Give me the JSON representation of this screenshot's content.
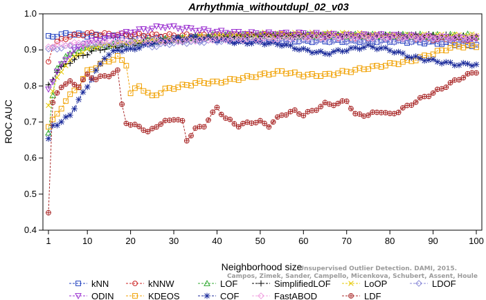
{
  "chart_data": {
    "type": "line",
    "title": "Arrhythmia_withoutdupl_02_v03",
    "xlabel": "Neighborhood size",
    "ylabel": "ROC AUC",
    "xlim": [
      1,
      100
    ],
    "ylim": [
      0.4,
      1.0
    ],
    "x_ticks": [
      1,
      10,
      20,
      30,
      40,
      50,
      60,
      70,
      80,
      90,
      100
    ],
    "y_ticks": [
      0.4,
      0.5,
      0.6,
      0.7,
      0.8,
      0.9,
      1.0
    ],
    "grid": false,
    "legend_position": "bottom",
    "watermark": [
      "Unsupervised Outlier Detection. DAMI, 2015.",
      "Campos, Zimek, Sander, Campello, Micenkova, Schubert, Assent, Houle"
    ],
    "series": [
      {
        "name": "kNN",
        "color": "#1f3fbf",
        "marker": "square",
        "anchors": [
          [
            1,
            0.935
          ],
          [
            3,
            0.94
          ],
          [
            6,
            0.945
          ],
          [
            10,
            0.94
          ],
          [
            20,
            0.935
          ],
          [
            30,
            0.93
          ],
          [
            40,
            0.93
          ],
          [
            50,
            0.93
          ],
          [
            60,
            0.925
          ],
          [
            70,
            0.925
          ],
          [
            80,
            0.925
          ],
          [
            90,
            0.92
          ],
          [
            100,
            0.913
          ]
        ]
      },
      {
        "name": "kNNW",
        "color": "#cc2222",
        "marker": "circle",
        "anchors": [
          [
            1,
            0.87
          ],
          [
            2,
            0.91
          ],
          [
            4,
            0.93
          ],
          [
            7,
            0.94
          ],
          [
            10,
            0.945
          ],
          [
            20,
            0.942
          ],
          [
            30,
            0.94
          ],
          [
            40,
            0.94
          ],
          [
            50,
            0.94
          ],
          [
            60,
            0.94
          ],
          [
            70,
            0.935
          ],
          [
            80,
            0.935
          ],
          [
            90,
            0.93
          ],
          [
            100,
            0.93
          ]
        ]
      },
      {
        "name": "LOF",
        "color": "#2fa82f",
        "marker": "triangle-up",
        "anchors": [
          [
            1,
            0.67
          ],
          [
            2,
            0.77
          ],
          [
            3,
            0.85
          ],
          [
            5,
            0.88
          ],
          [
            8,
            0.9
          ],
          [
            12,
            0.91
          ],
          [
            20,
            0.92
          ],
          [
            30,
            0.93
          ],
          [
            40,
            0.94
          ],
          [
            50,
            0.94
          ],
          [
            60,
            0.94
          ],
          [
            70,
            0.94
          ],
          [
            80,
            0.94
          ],
          [
            90,
            0.94
          ],
          [
            100,
            0.94
          ]
        ]
      },
      {
        "name": "SimplifiedLOF",
        "color": "#000000",
        "marker": "plus",
        "anchors": [
          [
            1,
            0.8
          ],
          [
            2,
            0.82
          ],
          [
            3,
            0.84
          ],
          [
            5,
            0.86
          ],
          [
            8,
            0.88
          ],
          [
            12,
            0.9
          ],
          [
            20,
            0.915
          ],
          [
            30,
            0.925
          ],
          [
            40,
            0.935
          ],
          [
            50,
            0.94
          ],
          [
            60,
            0.94
          ],
          [
            70,
            0.94
          ],
          [
            80,
            0.94
          ],
          [
            90,
            0.94
          ],
          [
            100,
            0.935
          ]
        ]
      },
      {
        "name": "LoOP",
        "color": "#e6c800",
        "marker": "x",
        "anchors": [
          [
            1,
            0.75
          ],
          [
            3,
            0.82
          ],
          [
            5,
            0.86
          ],
          [
            8,
            0.89
          ],
          [
            12,
            0.91
          ],
          [
            20,
            0.92
          ],
          [
            30,
            0.93
          ],
          [
            40,
            0.94
          ],
          [
            50,
            0.945
          ],
          [
            60,
            0.945
          ],
          [
            70,
            0.945
          ],
          [
            80,
            0.94
          ],
          [
            90,
            0.94
          ],
          [
            100,
            0.94
          ]
        ]
      },
      {
        "name": "LDOF",
        "color": "#8a8ad8",
        "marker": "diamond",
        "anchors": [
          [
            1,
            0.9
          ],
          [
            3,
            0.905
          ],
          [
            6,
            0.91
          ],
          [
            10,
            0.915
          ],
          [
            20,
            0.915
          ],
          [
            25,
            0.91
          ],
          [
            30,
            0.92
          ],
          [
            40,
            0.925
          ],
          [
            50,
            0.925
          ],
          [
            60,
            0.925
          ],
          [
            70,
            0.925
          ],
          [
            80,
            0.925
          ],
          [
            90,
            0.925
          ],
          [
            100,
            0.92
          ]
        ]
      },
      {
        "name": "ODIN",
        "color": "#9a2fd0",
        "marker": "triangle-down",
        "anchors": [
          [
            1,
            0.79
          ],
          [
            3,
            0.84
          ],
          [
            6,
            0.89
          ],
          [
            10,
            0.92
          ],
          [
            15,
            0.935
          ],
          [
            20,
            0.95
          ],
          [
            25,
            0.96
          ],
          [
            28,
            0.965
          ],
          [
            32,
            0.96
          ],
          [
            36,
            0.955
          ],
          [
            40,
            0.95
          ],
          [
            50,
            0.945
          ],
          [
            60,
            0.945
          ],
          [
            70,
            0.94
          ],
          [
            80,
            0.94
          ],
          [
            90,
            0.935
          ],
          [
            100,
            0.93
          ]
        ]
      },
      {
        "name": "KDEOS",
        "color": "#f0a000",
        "marker": "square",
        "anchors": [
          [
            1,
            0.69
          ],
          [
            3,
            0.72
          ],
          [
            5,
            0.76
          ],
          [
            8,
            0.8
          ],
          [
            10,
            0.84
          ],
          [
            13,
            0.86
          ],
          [
            17,
            0.88
          ],
          [
            19,
            0.86
          ],
          [
            20,
            0.78
          ],
          [
            22,
            0.8
          ],
          [
            25,
            0.77
          ],
          [
            28,
            0.79
          ],
          [
            32,
            0.8
          ],
          [
            36,
            0.81
          ],
          [
            40,
            0.81
          ],
          [
            45,
            0.82
          ],
          [
            50,
            0.83
          ],
          [
            55,
            0.84
          ],
          [
            60,
            0.83
          ],
          [
            65,
            0.83
          ],
          [
            70,
            0.84
          ],
          [
            75,
            0.85
          ],
          [
            80,
            0.86
          ],
          [
            85,
            0.87
          ],
          [
            90,
            0.89
          ],
          [
            95,
            0.91
          ],
          [
            100,
            0.91
          ]
        ]
      },
      {
        "name": "COF",
        "color": "#1a2a9a",
        "marker": "asterisk",
        "anchors": [
          [
            1,
            0.65
          ],
          [
            2,
            0.69
          ],
          [
            4,
            0.7
          ],
          [
            6,
            0.72
          ],
          [
            8,
            0.76
          ],
          [
            10,
            0.8
          ],
          [
            12,
            0.84
          ],
          [
            14,
            0.88
          ],
          [
            17,
            0.9
          ],
          [
            20,
            0.9
          ],
          [
            25,
            0.92
          ],
          [
            30,
            0.93
          ],
          [
            35,
            0.935
          ],
          [
            40,
            0.93
          ],
          [
            45,
            0.92
          ],
          [
            50,
            0.92
          ],
          [
            55,
            0.915
          ],
          [
            60,
            0.9
          ],
          [
            65,
            0.89
          ],
          [
            70,
            0.9
          ],
          [
            75,
            0.91
          ],
          [
            80,
            0.9
          ],
          [
            85,
            0.88
          ],
          [
            90,
            0.87
          ],
          [
            95,
            0.86
          ],
          [
            100,
            0.86
          ]
        ]
      },
      {
        "name": "FastABOD",
        "color": "#f0a0e0",
        "marker": "diamond",
        "anchors": [
          [
            1,
            0.91
          ],
          [
            5,
            0.915
          ],
          [
            10,
            0.92
          ],
          [
            20,
            0.925
          ],
          [
            30,
            0.925
          ],
          [
            40,
            0.93
          ],
          [
            50,
            0.93
          ],
          [
            60,
            0.935
          ],
          [
            70,
            0.935
          ],
          [
            80,
            0.935
          ],
          [
            90,
            0.935
          ],
          [
            100,
            0.935
          ]
        ]
      },
      {
        "name": "LDF",
        "color": "#aa2a2a",
        "marker": "circle-plus",
        "anchors": [
          [
            1,
            0.45
          ],
          [
            2,
            0.75
          ],
          [
            3,
            0.78
          ],
          [
            4,
            0.8
          ],
          [
            6,
            0.81
          ],
          [
            8,
            0.8
          ],
          [
            10,
            0.83
          ],
          [
            12,
            0.82
          ],
          [
            15,
            0.83
          ],
          [
            17,
            0.84
          ],
          [
            18,
            0.75
          ],
          [
            19,
            0.7
          ],
          [
            20,
            0.69
          ],
          [
            22,
            0.69
          ],
          [
            24,
            0.67
          ],
          [
            26,
            0.69
          ],
          [
            28,
            0.7
          ],
          [
            30,
            0.71
          ],
          [
            32,
            0.7
          ],
          [
            33,
            0.65
          ],
          [
            35,
            0.68
          ],
          [
            37,
            0.69
          ],
          [
            40,
            0.74
          ],
          [
            42,
            0.71
          ],
          [
            45,
            0.69
          ],
          [
            48,
            0.7
          ],
          [
            50,
            0.7
          ],
          [
            52,
            0.69
          ],
          [
            55,
            0.72
          ],
          [
            58,
            0.73
          ],
          [
            60,
            0.72
          ],
          [
            62,
            0.73
          ],
          [
            65,
            0.75
          ],
          [
            68,
            0.75
          ],
          [
            70,
            0.76
          ],
          [
            72,
            0.72
          ],
          [
            75,
            0.72
          ],
          [
            78,
            0.73
          ],
          [
            80,
            0.72
          ],
          [
            82,
            0.73
          ],
          [
            85,
            0.75
          ],
          [
            88,
            0.77
          ],
          [
            90,
            0.78
          ],
          [
            93,
            0.8
          ],
          [
            96,
            0.82
          ],
          [
            98,
            0.83
          ],
          [
            100,
            0.84
          ]
        ]
      }
    ]
  }
}
